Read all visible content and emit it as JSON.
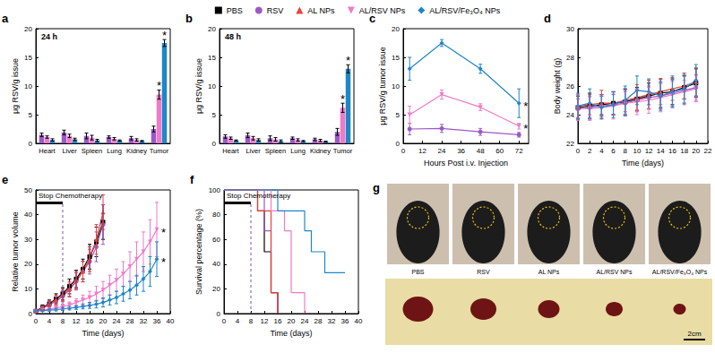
{
  "legend": "top",
  "chart_data": [
    {
      "panel": "a",
      "type": "bar",
      "title": "24 h",
      "grid": false,
      "categories": [
        "Heart",
        "Liver",
        "Spleen",
        "Lung",
        "Kidney",
        "Tumor"
      ],
      "y_label": "μg RSV/g issue",
      "ylim": [
        0,
        20
      ],
      "yticks": [
        0,
        5,
        10,
        15,
        20
      ],
      "series": [
        {
          "name": "RSV",
          "color": "#9b59c6",
          "values": [
            1.5,
            1.9,
            1.3,
            1.1,
            0.9,
            2.5
          ],
          "errors": [
            0.3,
            0.4,
            0.5,
            0.2,
            0.3,
            0.5
          ]
        },
        {
          "name": "AL/RSV NPs",
          "color": "#f07ac8",
          "values": [
            1.1,
            1.3,
            1.0,
            0.8,
            0.6,
            8.5
          ],
          "errors": [
            0.2,
            0.3,
            0.4,
            0.2,
            0.2,
            0.8
          ]
        },
        {
          "name": "AL/RSV/Fe₃O₄ NPs",
          "color": "#1f86c8",
          "values": [
            0.6,
            0.7,
            0.5,
            0.5,
            0.4,
            17.5
          ],
          "errors": [
            0.2,
            0.2,
            0.2,
            0.1,
            0.1,
            0.6
          ]
        }
      ],
      "annotations": [
        {
          "text": "*",
          "series": "AL/RSV NPs",
          "x": "Tumor"
        },
        {
          "text": "*",
          "series": "AL/RSV/Fe₃O₄ NPs",
          "x": "Tumor"
        }
      ]
    },
    {
      "panel": "b",
      "type": "bar",
      "title": "48 h",
      "grid": false,
      "categories": [
        "Heart",
        "Liver",
        "Spleen",
        "Lung",
        "Kidney",
        "Tumor"
      ],
      "y_label": "μg RSV/g issue",
      "ylim": [
        0,
        20
      ],
      "yticks": [
        0,
        5,
        10,
        15,
        20
      ],
      "series": [
        {
          "name": "RSV",
          "color": "#9b59c6",
          "values": [
            1.2,
            1.4,
            0.9,
            0.9,
            0.7,
            2.0
          ],
          "errors": [
            0.3,
            0.4,
            0.4,
            0.2,
            0.2,
            0.6
          ]
        },
        {
          "name": "AL/RSV NPs",
          "color": "#f07ac8",
          "values": [
            0.9,
            0.9,
            0.7,
            0.6,
            0.5,
            6.2
          ],
          "errors": [
            0.2,
            0.3,
            0.3,
            0.2,
            0.2,
            0.8
          ]
        },
        {
          "name": "AL/RSV/Fe₃O₄ NPs",
          "color": "#1f86c8",
          "values": [
            0.5,
            0.6,
            0.4,
            0.4,
            0.3,
            13.0
          ],
          "errors": [
            0.1,
            0.2,
            0.2,
            0.1,
            0.1,
            0.7
          ]
        }
      ],
      "annotations": [
        {
          "text": "*",
          "series": "AL/RSV NPs",
          "x": "Tumor"
        },
        {
          "text": "*",
          "series": "AL/RSV/Fe₃O₄ NPs",
          "x": "Tumor"
        }
      ]
    },
    {
      "panel": "c",
      "type": "line",
      "grid": false,
      "x_label": "Hours Post i.v. Injection",
      "y_label": "μg RSV/g tumor issue",
      "xlim": [
        0,
        78
      ],
      "xticks": [
        0,
        12,
        24,
        36,
        48,
        60,
        72
      ],
      "ylim": [
        0,
        20
      ],
      "yticks": [
        0,
        5,
        10,
        15,
        20
      ],
      "series": [
        {
          "name": "RSV",
          "color": "#9b59c6",
          "marker": "circle",
          "x": [
            4,
            24,
            48,
            72
          ],
          "values": [
            2.5,
            2.6,
            2.0,
            1.5
          ],
          "errors": [
            1.0,
            0.7,
            0.6,
            0.4
          ]
        },
        {
          "name": "AL/RSV NPs",
          "color": "#f07ac8",
          "marker": "triangle_down",
          "x": [
            4,
            24,
            48,
            72
          ],
          "values": [
            5.0,
            8.5,
            6.3,
            3.0
          ],
          "errors": [
            1.5,
            0.8,
            0.6,
            0.5
          ]
        },
        {
          "name": "AL/RSV/Fe₃O₄ NPs",
          "color": "#1f86c8",
          "marker": "diamond",
          "x": [
            4,
            24,
            48,
            72
          ],
          "values": [
            13.0,
            17.5,
            13.0,
            7.0
          ],
          "errors": [
            2.0,
            0.6,
            0.8,
            2.5
          ]
        }
      ],
      "annotations": [
        {
          "text": "*",
          "series": "AL/RSV NPs",
          "x": 72
        },
        {
          "text": "*",
          "series": "AL/RSV/Fe₃O₄ NPs",
          "x": 72
        }
      ]
    },
    {
      "panel": "d",
      "type": "line",
      "grid": false,
      "x_label": "Time (days)",
      "y_label": "Body weight (g)",
      "xlim": [
        0,
        22
      ],
      "xticks": [
        0,
        2,
        4,
        6,
        8,
        10,
        12,
        14,
        16,
        18,
        20,
        22
      ],
      "ylim": [
        22,
        30
      ],
      "yticks": [
        22,
        24,
        26,
        28,
        30
      ],
      "series": [
        {
          "name": "PBS",
          "color": "#000000",
          "marker": "square",
          "x": [
            0,
            2,
            4,
            6,
            8,
            10,
            12,
            14,
            16,
            18,
            20
          ],
          "values": [
            24.5,
            24.6,
            24.7,
            24.8,
            24.9,
            25.1,
            25.3,
            25.5,
            25.6,
            25.9,
            26.2
          ],
          "errors": [
            0.8,
            0.9,
            0.7,
            0.8,
            0.9,
            0.8,
            0.9,
            1.0,
            0.9,
            0.8,
            1.0
          ]
        },
        {
          "name": "RSV",
          "color": "#9b59c6",
          "marker": "circle",
          "x": [
            0,
            2,
            4,
            6,
            8,
            10,
            12,
            14,
            16,
            18,
            20
          ],
          "values": [
            24.4,
            24.5,
            24.6,
            24.7,
            24.8,
            25.0,
            25.2,
            25.3,
            25.5,
            25.7,
            25.9
          ],
          "errors": [
            0.7,
            0.8,
            0.8,
            0.7,
            0.9,
            0.8,
            0.8,
            0.9,
            0.9,
            1.0,
            0.9
          ]
        },
        {
          "name": "AL NPs",
          "color": "#e8413c",
          "marker": "triangle",
          "x": [
            0,
            2,
            4,
            6,
            8,
            10,
            12,
            14,
            16,
            18,
            20
          ],
          "values": [
            24.6,
            24.7,
            24.8,
            24.8,
            25.0,
            25.2,
            25.4,
            25.6,
            25.8,
            26.0,
            26.3
          ],
          "errors": [
            0.8,
            0.7,
            0.9,
            0.8,
            0.8,
            0.9,
            1.0,
            0.9,
            0.8,
            0.9,
            1.0
          ]
        },
        {
          "name": "AL/RSV NPs",
          "color": "#f07ac8",
          "marker": "triangle_down",
          "x": [
            0,
            2,
            4,
            6,
            8,
            10,
            12,
            14,
            16,
            18,
            20
          ],
          "values": [
            24.5,
            24.4,
            24.5,
            24.6,
            24.8,
            24.9,
            25.0,
            25.2,
            25.4,
            25.6,
            25.8
          ],
          "errors": [
            0.9,
            0.8,
            0.8,
            0.9,
            0.8,
            0.9,
            0.9,
            1.0,
            0.9,
            0.8,
            0.9
          ]
        },
        {
          "name": "AL/RSV/Fe₃O₄ NPs",
          "color": "#1f86c8",
          "marker": "diamond",
          "x": [
            0,
            2,
            4,
            6,
            8,
            10,
            12,
            14,
            16,
            18,
            20
          ],
          "values": [
            24.6,
            24.8,
            24.5,
            24.7,
            25.0,
            25.7,
            25.6,
            25.3,
            25.6,
            25.8,
            26.4
          ],
          "errors": [
            0.9,
            1.0,
            0.8,
            0.9,
            1.0,
            1.0,
            0.9,
            1.0,
            1.1,
            1.0,
            1.1
          ]
        }
      ]
    },
    {
      "panel": "e",
      "type": "line",
      "grid": false,
      "x_label": "Time (days)",
      "y_label": "Relative tumor volume",
      "xlim": [
        0,
        40
      ],
      "xticks": [
        0,
        4,
        8,
        12,
        16,
        20,
        24,
        28,
        32,
        36,
        40
      ],
      "ylim": [
        0,
        50
      ],
      "yticks": [
        0,
        10,
        20,
        30,
        40,
        50
      ],
      "stop_chemotherapy": {
        "text": "Stop Chemotherapy",
        "x_start": 0,
        "x_end": 8
      },
      "series": [
        {
          "name": "PBS",
          "color": "#000000",
          "marker": "square",
          "x": [
            0,
            2,
            4,
            6,
            8,
            10,
            12,
            14,
            16,
            18,
            20
          ],
          "values": [
            1,
            2.5,
            4,
            6,
            8,
            11,
            14,
            18,
            23,
            29,
            37
          ],
          "errors": [
            0.3,
            1,
            1.5,
            2,
            2.5,
            3,
            3.5,
            4,
            5,
            6,
            7
          ]
        },
        {
          "name": "RSV",
          "color": "#9b59c6",
          "marker": "circle",
          "x": [
            0,
            2,
            4,
            6,
            8,
            10,
            12,
            14,
            16,
            18,
            20
          ],
          "values": [
            1,
            2,
            3.5,
            5,
            7,
            9.5,
            13,
            17,
            21,
            27,
            36
          ],
          "errors": [
            0.3,
            0.8,
            1.2,
            1.8,
            2.2,
            2.8,
            3.5,
            4,
            5,
            6,
            8
          ]
        },
        {
          "name": "AL NPs",
          "color": "#e8413c",
          "marker": "triangle",
          "x": [
            0,
            2,
            4,
            6,
            8,
            10,
            12,
            14,
            16,
            18,
            20
          ],
          "values": [
            1,
            2.2,
            3.8,
            5.5,
            7.5,
            10,
            13.5,
            17,
            22,
            30,
            41
          ],
          "errors": [
            0.3,
            0.9,
            1.3,
            1.9,
            2.4,
            3,
            3.6,
            4.2,
            5,
            6,
            7
          ]
        },
        {
          "name": "AL/RSV NPs",
          "color": "#f07ac8",
          "marker": "triangle_down",
          "x": [
            0,
            2,
            4,
            6,
            8,
            10,
            12,
            14,
            16,
            18,
            20,
            22,
            24,
            26,
            28,
            30,
            32,
            34,
            36
          ],
          "values": [
            1,
            1.4,
            1.8,
            2.3,
            2.8,
            3.5,
            4.5,
            5.5,
            6.5,
            8,
            9.5,
            11.5,
            13.5,
            16,
            19,
            22,
            25,
            29,
            34
          ],
          "errors": [
            0.2,
            0.4,
            0.6,
            0.8,
            1,
            1.2,
            1.5,
            2,
            2.5,
            3,
            3.5,
            4,
            4.5,
            5,
            6,
            7,
            8,
            9,
            11
          ]
        },
        {
          "name": "AL/RSV/Fe₃O₄ NPs",
          "color": "#1f86c8",
          "marker": "diamond",
          "x": [
            0,
            2,
            4,
            6,
            8,
            10,
            12,
            14,
            16,
            18,
            20,
            22,
            24,
            26,
            28,
            30,
            32,
            34,
            36
          ],
          "values": [
            1,
            1.2,
            1.4,
            1.6,
            1.9,
            2.2,
            2.5,
            2.9,
            3.3,
            3.8,
            4.5,
            5.5,
            6.5,
            8,
            9.5,
            11.5,
            14,
            17,
            22
          ],
          "errors": [
            0.2,
            0.3,
            0.4,
            0.5,
            0.6,
            0.7,
            0.8,
            1,
            1.2,
            1.5,
            1.8,
            2,
            2.5,
            3,
            3.5,
            4,
            5,
            6,
            7
          ]
        }
      ],
      "annotations": [
        {
          "text": "*",
          "series": "AL/RSV NPs",
          "x": 36
        },
        {
          "text": "*",
          "series": "AL/RSV/Fe₃O₄ NPs",
          "x": 36
        }
      ]
    },
    {
      "panel": "f",
      "type": "step",
      "grid": false,
      "marker": "none",
      "x_label": "Time (days)",
      "y_label": "Survival percentage (%)",
      "xlim": [
        0,
        40
      ],
      "xticks": [
        0,
        4,
        8,
        12,
        16,
        20,
        24,
        28,
        32,
        36,
        40
      ],
      "ylim": [
        0,
        100
      ],
      "yticks": [
        0,
        20,
        40,
        60,
        80,
        100
      ],
      "stop_chemotherapy": {
        "text": "Stop Chemotherapy",
        "x_start": 0,
        "x_end": 8
      },
      "series": [
        {
          "name": "PBS",
          "color": "#000000",
          "x": [
            0,
            10,
            12,
            14,
            16
          ],
          "values": [
            100,
            83,
            50,
            17,
            0
          ]
        },
        {
          "name": "RSV",
          "color": "#9b59c6",
          "x": [
            0,
            12,
            14,
            16
          ],
          "values": [
            100,
            67,
            17,
            0
          ]
        },
        {
          "name": "AL NPs",
          "color": "#e8413c",
          "x": [
            0,
            10,
            14,
            16
          ],
          "values": [
            100,
            83,
            17,
            0
          ]
        },
        {
          "name": "AL/RSV NPs",
          "color": "#f07ac8",
          "x": [
            0,
            14,
            18,
            20,
            24
          ],
          "values": [
            100,
            83,
            67,
            17,
            0
          ]
        },
        {
          "name": "AL/RSV/Fe₃O₄ NPs",
          "color": "#1f86c8",
          "x": [
            0,
            16,
            24,
            26,
            30,
            36
          ],
          "values": [
            100,
            83,
            67,
            50,
            33,
            33
          ]
        }
      ]
    },
    {
      "panel": "g",
      "type": "photo",
      "groups": [
        "PBS",
        "RSV",
        "AL NPs",
        "AL/RSV NPs",
        "AL/RSV/Fe₃O₄ NPs"
      ],
      "scale_bar": "2cm"
    }
  ]
}
